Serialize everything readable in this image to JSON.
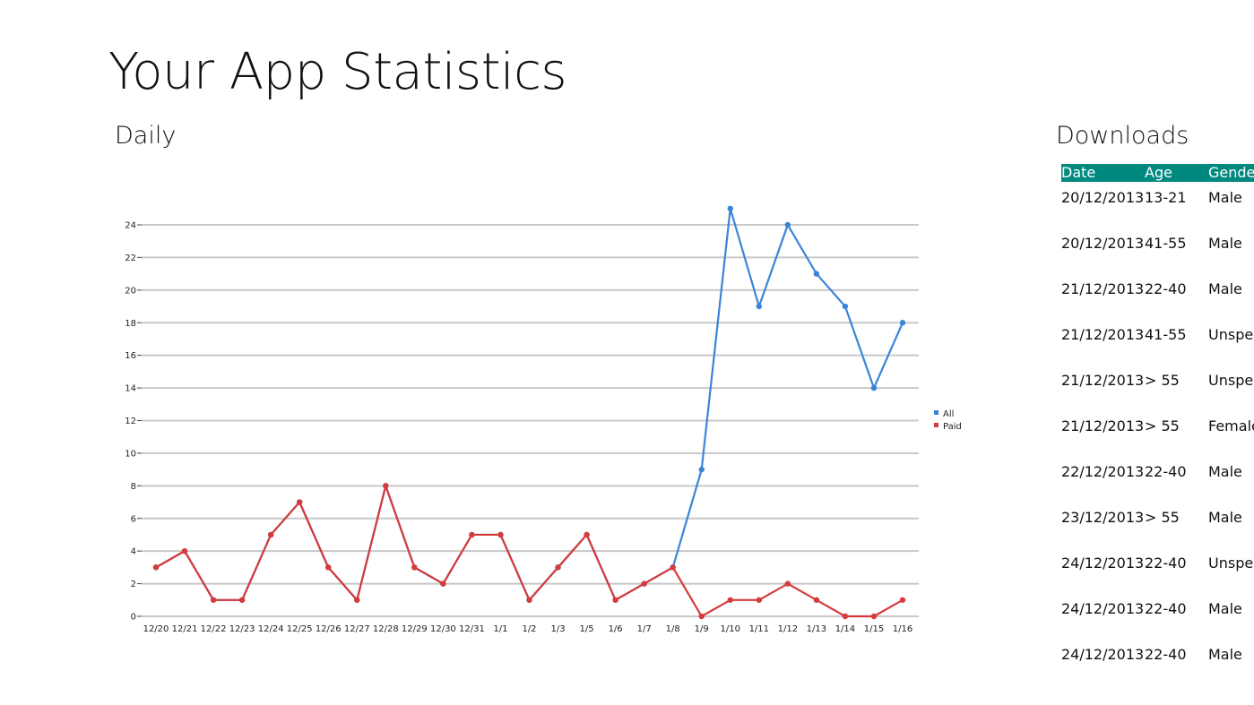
{
  "title": "Your App Statistics",
  "daily_heading": "Daily",
  "downloads_heading": "Downloads",
  "chart_data": {
    "type": "line",
    "categories": [
      "12/20",
      "12/21",
      "12/22",
      "12/23",
      "12/24",
      "12/25",
      "12/26",
      "12/27",
      "12/28",
      "12/29",
      "12/30",
      "12/31",
      "1/1",
      "1/2",
      "1/3",
      "1/5",
      "1/6",
      "1/7",
      "1/8",
      "1/9",
      "1/10",
      "1/11",
      "1/12",
      "1/13",
      "1/14",
      "1/15",
      "1/16"
    ],
    "series": [
      {
        "name": "All",
        "color": "#3a84d8",
        "values": [
          3,
          4,
          1,
          1,
          5,
          7,
          3,
          1,
          8,
          3,
          2,
          5,
          5,
          1,
          3,
          5,
          1,
          2,
          3,
          9,
          25,
          19,
          24,
          21,
          19,
          14,
          18
        ]
      },
      {
        "name": "Paid",
        "color": "#d63b3b",
        "values": [
          3,
          4,
          1,
          1,
          5,
          7,
          3,
          1,
          8,
          3,
          2,
          5,
          5,
          1,
          3,
          5,
          1,
          2,
          3,
          0,
          1,
          1,
          2,
          1,
          0,
          0,
          1
        ]
      }
    ],
    "yticks": [
      0,
      2,
      4,
      6,
      8,
      10,
      12,
      14,
      16,
      18,
      20,
      22,
      24
    ],
    "ylim": [
      0,
      24
    ],
    "grid": true,
    "legend": "right"
  },
  "table": {
    "headers": [
      "Date",
      "Age",
      "Gender"
    ],
    "rows": [
      [
        "20/12/2013",
        "13-21",
        "Male"
      ],
      [
        "20/12/2013",
        "41-55",
        "Male"
      ],
      [
        "21/12/2013",
        "22-40",
        "Male"
      ],
      [
        "21/12/2013",
        "41-55",
        "Unspecified"
      ],
      [
        "21/12/2013",
        "> 55",
        "Unspecified"
      ],
      [
        "21/12/2013",
        "> 55",
        "Female"
      ],
      [
        "22/12/2013",
        "22-40",
        "Male"
      ],
      [
        "23/12/2013",
        "> 55",
        "Male"
      ],
      [
        "24/12/2013",
        "22-40",
        "Unspecified"
      ],
      [
        "24/12/2013",
        "22-40",
        "Male"
      ],
      [
        "24/12/2013",
        "22-40",
        "Male"
      ]
    ]
  }
}
